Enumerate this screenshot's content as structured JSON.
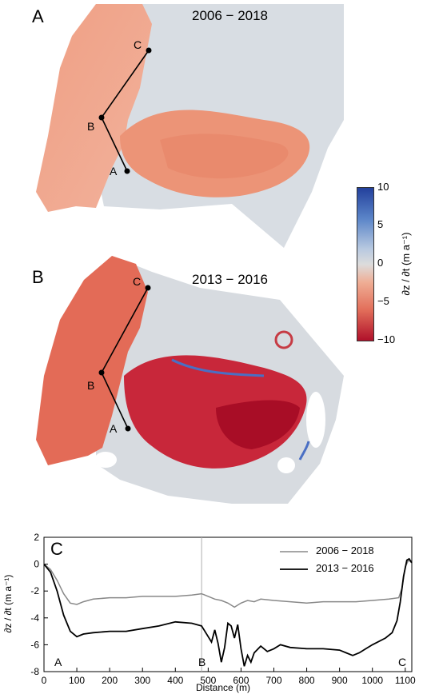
{
  "panels": {
    "a": {
      "letter": "A",
      "title": "2006 − 2018",
      "points": [
        "C",
        "B",
        "A"
      ]
    },
    "b": {
      "letter": "B",
      "title": "2013 − 2016",
      "points": [
        "C",
        "B",
        "A"
      ]
    }
  },
  "colorbar": {
    "ticks": [
      "10",
      "5",
      "0",
      "−5",
      "−10"
    ],
    "label": "∂z / ∂t (m a⁻¹)",
    "colors": {
      "max": "#2a4fa8",
      "mid": "#dcdcdc",
      "min": "#b5102a"
    }
  },
  "profile": {
    "letter": "C",
    "ylabel": "∂z / ∂t (m a⁻¹)",
    "xlabel": "Distance (m)",
    "xticks": [
      "0",
      "100",
      "200",
      "300",
      "400",
      "500",
      "600",
      "700",
      "800",
      "900",
      "1000",
      "1100"
    ],
    "yticks": [
      "2",
      "0",
      "-2",
      "-4",
      "-6",
      "-8"
    ],
    "point_labels": [
      "A",
      "B",
      "C"
    ],
    "chart_data": {
      "type": "line",
      "xlabel": "Distance (m)",
      "ylabel": "∂z / ∂t (m a⁻¹)",
      "xlim": [
        0,
        1120
      ],
      "ylim": [
        -8,
        2
      ],
      "vline_x": 480,
      "legend_position": "top-right",
      "series": [
        {
          "name": "2006 − 2018",
          "color": "#888888",
          "x": [
            0,
            20,
            40,
            60,
            80,
            100,
            120,
            150,
            200,
            250,
            300,
            350,
            400,
            450,
            480,
            500,
            520,
            540,
            560,
            580,
            600,
            620,
            640,
            660,
            700,
            750,
            800,
            850,
            900,
            950,
            1000,
            1050,
            1080,
            1090,
            1100,
            1110,
            1120
          ],
          "y": [
            0,
            -0.4,
            -1.2,
            -2.2,
            -2.9,
            -3.0,
            -2.8,
            -2.6,
            -2.5,
            -2.5,
            -2.4,
            -2.4,
            -2.4,
            -2.3,
            -2.2,
            -2.4,
            -2.6,
            -2.7,
            -2.9,
            -3.2,
            -2.9,
            -2.7,
            -2.8,
            -2.6,
            -2.7,
            -2.8,
            -2.9,
            -2.8,
            -2.8,
            -2.8,
            -2.7,
            -2.6,
            -2.5,
            -1.8,
            -0.2,
            0.3,
            0.1
          ]
        },
        {
          "name": "2013 − 2016",
          "color": "#000000",
          "x": [
            0,
            20,
            40,
            60,
            80,
            100,
            120,
            150,
            200,
            250,
            300,
            350,
            400,
            450,
            480,
            500,
            510,
            520,
            530,
            540,
            550,
            560,
            570,
            580,
            590,
            600,
            610,
            620,
            630,
            640,
            660,
            680,
            700,
            720,
            750,
            800,
            850,
            900,
            920,
            940,
            960,
            980,
            1000,
            1040,
            1060,
            1075,
            1085,
            1095,
            1105,
            1112,
            1120
          ],
          "y": [
            0,
            -0.6,
            -2.0,
            -3.8,
            -5.0,
            -5.4,
            -5.2,
            -5.1,
            -5.0,
            -5.0,
            -4.8,
            -4.6,
            -4.3,
            -4.4,
            -4.6,
            -5.4,
            -5.8,
            -4.9,
            -5.9,
            -7.3,
            -6.2,
            -4.4,
            -4.6,
            -5.5,
            -4.5,
            -6.3,
            -7.6,
            -6.8,
            -7.3,
            -6.6,
            -6.1,
            -6.5,
            -6.3,
            -6.0,
            -6.2,
            -6.3,
            -6.3,
            -6.4,
            -6.6,
            -6.8,
            -6.6,
            -6.3,
            -6.0,
            -5.5,
            -5.1,
            -4.2,
            -2.8,
            -0.9,
            0.3,
            0.4,
            0.1
          ]
        }
      ]
    }
  }
}
